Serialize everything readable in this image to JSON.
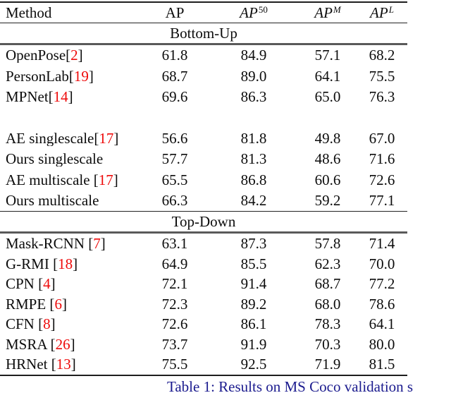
{
  "table": {
    "headers": {
      "method": "Method",
      "ap": "AP",
      "ap50": {
        "base": "AP",
        "sup": "50"
      },
      "apm": {
        "base": "AP",
        "sup": "M"
      },
      "apl": {
        "base": "AP",
        "sup": "L"
      }
    },
    "sections": [
      {
        "label": "Bottom-Up",
        "rows": [
          {
            "pre": "OpenPose[",
            "cite": "2",
            "post": "]",
            "ap": "61.8",
            "ap50": "84.9",
            "apm": "57.1",
            "apl": "68.2"
          },
          {
            "pre": "PersonLab[",
            "cite": "19",
            "post": "]",
            "ap": "68.7",
            "ap50": "89.0",
            "apm": "64.1",
            "apl": "75.5"
          },
          {
            "pre": "MPNet[",
            "cite": "14",
            "post": "]",
            "ap": "69.6",
            "ap50": "86.3",
            "apm": "65.0",
            "apl": "76.3"
          },
          {
            "blank": true
          },
          {
            "pre": "AE singlescale[",
            "cite": "17",
            "post": "]",
            "ap": "56.6",
            "ap50": "81.8",
            "apm": "49.8",
            "apl": "67.0"
          },
          {
            "pre": "Ours singlescale",
            "cite": "",
            "post": "",
            "ap": "57.7",
            "ap50": "81.3",
            "apm": "48.6",
            "apl": "71.6"
          },
          {
            "pre": "AE multiscale [",
            "cite": "17",
            "post": "]",
            "ap": "65.5",
            "ap50": "86.8",
            "apm": "60.6",
            "apl": "72.6"
          },
          {
            "pre": "Ours multiscale",
            "cite": "",
            "post": "",
            "ap": "66.3",
            "ap50": "84.2",
            "apm": "59.2",
            "apl": "77.1"
          }
        ]
      },
      {
        "label": "Top-Down",
        "rows": [
          {
            "pre": "Mask-RCNN [",
            "cite": "7",
            "post": "]",
            "ap": "63.1",
            "ap50": "87.3",
            "apm": "57.8",
            "apl": "71.4"
          },
          {
            "pre": "G-RMI [",
            "cite": "18",
            "post": "]",
            "ap": "64.9",
            "ap50": "85.5",
            "apm": "62.3",
            "apl": "70.0"
          },
          {
            "pre": "CPN [",
            "cite": "4",
            "post": "]",
            "ap": "72.1",
            "ap50": "91.4",
            "apm": "68.7",
            "apl": "77.2"
          },
          {
            "pre": "RMPE [",
            "cite": "6",
            "post": "]",
            "ap": "72.3",
            "ap50": "89.2",
            "apm": "68.0",
            "apl": "78.6"
          },
          {
            "pre": "CFN [",
            "cite": "8",
            "post": "]",
            "ap": "72.6",
            "ap50": "86.1",
            "apm": "78.3",
            "apl": "64.1"
          },
          {
            "pre": "MSRA [",
            "cite": "26",
            "post": "]",
            "ap": "73.7",
            "ap50": "91.9",
            "apm": "70.3",
            "apl": "80.0"
          },
          {
            "pre": "HRNet [",
            "cite": "13",
            "post": "]",
            "ap": "75.5",
            "ap50": "92.5",
            "apm": "71.9",
            "apl": "81.5"
          }
        ]
      }
    ]
  },
  "caption": {
    "text": "Table 1: Results on MS Coco validation s"
  },
  "colors": {
    "citation_red": "#ee0b0b",
    "caption_blue": "#1b1b8e",
    "rule_dark": "#1d1d1d",
    "rule_gray": "#5a5a5a"
  }
}
